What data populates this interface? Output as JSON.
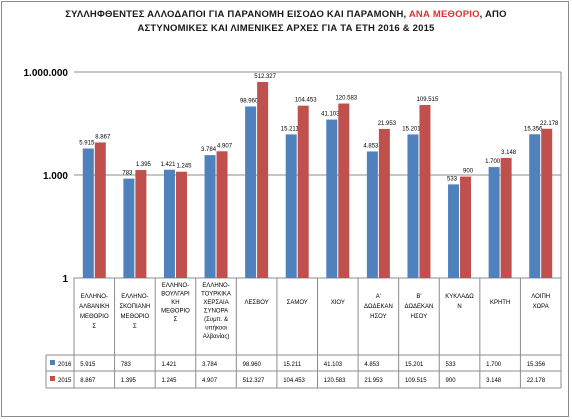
{
  "title": {
    "line1_a": "ΣΥΛΛΗΦΘΕΝΤΕΣ ΑΛΛΟΔΑΠΟΙ ΓΙΑ ΠΑΡΑΝΟΜΗ ΕΙΣΟΔΟ  ΚΑΙ ΠΑΡΑΜΟΝΗ, ",
    "line1_highlight": "ΑΝΑ ΜΕΘΟΡΙΟ",
    "line1_b": ", ΑΠΟ",
    "line2": "ΑΣΤΥΝΟΜΙΚΕΣ ΚΑΙ ΛΙΜΕΝΙΚΕΣ ΑΡΧΕΣ ΓΙΑ ΤΑ ΕΤΗ 2016 & 2015",
    "highlight_color": "#e03030"
  },
  "chart_data": {
    "type": "bar",
    "scale": "log",
    "ylim": [
      1,
      1000000
    ],
    "ytick_labels": [
      "1.000.000",
      "1.000",
      "1"
    ],
    "ytick_values": [
      1000000,
      1000,
      1
    ],
    "grid": true,
    "legend": "data table rows",
    "categories": [
      [
        "ΕΛΛΗΝΟ-",
        "ΑΛΒΑΝΙΚΗ",
        "ΜΕΘΟΡΙΟ",
        "Σ"
      ],
      [
        "ΕΛΛΗΝΟ-",
        "ΣΚΟΠΙΑΝΗ",
        "ΜΕΘΟΡΙΟ",
        "Σ"
      ],
      [
        "ΕΛΛΗΝΟ-",
        "ΒΟΥΛΓΑΡΙ",
        "ΚΗ",
        "ΜΕΘΟΡΙΟ",
        "Σ"
      ],
      [
        "ΕΛΛΗΝΟ-",
        "ΤΟΥΡΚΙΚΑ",
        "ΧΕΡΣΑΙΑ",
        "ΣΥΝΟΡΑ",
        "(Συμπ. &",
        "υπήκοοι",
        "Αλβανίας)"
      ],
      [
        "ΛΕΣΒΟΥ"
      ],
      [
        "ΣΑΜΟΥ"
      ],
      [
        "ΧΙΟΥ"
      ],
      [
        "Α'",
        "ΔΩΔΕΚΑΝ",
        "ΗΣΟΥ"
      ],
      [
        "Β'",
        "ΔΩΔΕΚΑΝ",
        "ΗΣΟΥ"
      ],
      [
        "ΚΥΚΛΑΔΩ",
        "Ν"
      ],
      [
        "ΚΡΗΤΗ"
      ],
      [
        "ΛΟΙΠΗ",
        "ΧΩΡΑ"
      ]
    ],
    "series": [
      {
        "name": "2016",
        "color": "#4f81bd",
        "values": [
          5915,
          783,
          1421,
          3784,
          98960,
          15211,
          41103,
          4853,
          15201,
          533,
          1700,
          15356
        ],
        "labels": [
          "5.915",
          "783",
          "1.421",
          "3.784",
          "98.960",
          "15.211",
          "41.103",
          "4.853",
          "15.201",
          "533",
          "1.700",
          "15.356"
        ]
      },
      {
        "name": "2015",
        "color": "#c0504d",
        "values": [
          8867,
          1395,
          1245,
          4907,
          512327,
          104453,
          120583,
          21953,
          109515,
          900,
          3148,
          22178
        ],
        "labels": [
          "8.867",
          "1.395",
          "1.245",
          "4.907",
          "512.327",
          "104.453",
          "120.583",
          "21.953",
          "109.515",
          "900",
          "3.148",
          "22.178"
        ]
      }
    ]
  }
}
